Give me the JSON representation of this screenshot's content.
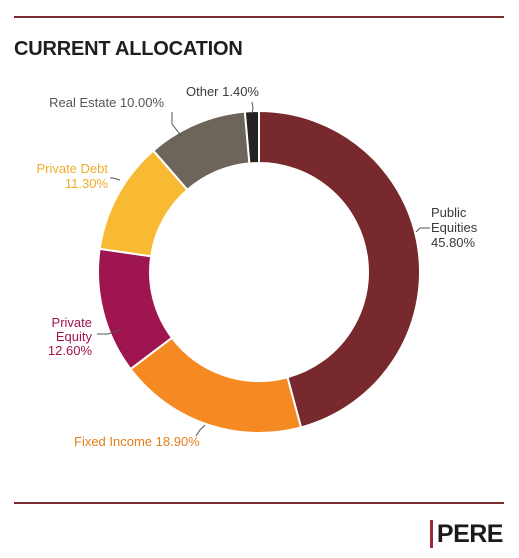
{
  "header": {
    "title": "CURRENT ALLOCATION"
  },
  "brand": {
    "logo_text": "PERE"
  },
  "chart_data": {
    "type": "pie",
    "variant": "donut",
    "title": "CURRENT ALLOCATION",
    "categories": [
      "Public Equities",
      "Fixed Income",
      "Private Equity",
      "Private Debt",
      "Real Estate",
      "Other"
    ],
    "values": [
      45.8,
      18.9,
      12.6,
      11.3,
      10.0,
      1.4
    ],
    "labels": [
      [
        "Public",
        "Equities",
        "45.80%"
      ],
      [
        "Fixed Income 18.90%"
      ],
      [
        "Private",
        "Equity",
        "12.60%"
      ],
      [
        "Private Debt",
        "11.30%"
      ],
      [
        "Real Estate 10.00%"
      ],
      [
        "Other 1.40%"
      ]
    ],
    "colors": [
      "#78292d",
      "#f58a22",
      "#9e1550",
      "#f8ba32",
      "#6d645b",
      "#262223"
    ],
    "label_colors": [
      "#3a3a3a",
      "#e57d1c",
      "#9e1550",
      "#f0ad2a",
      "#555555",
      "#3a3a3a"
    ],
    "legend": "none"
  }
}
